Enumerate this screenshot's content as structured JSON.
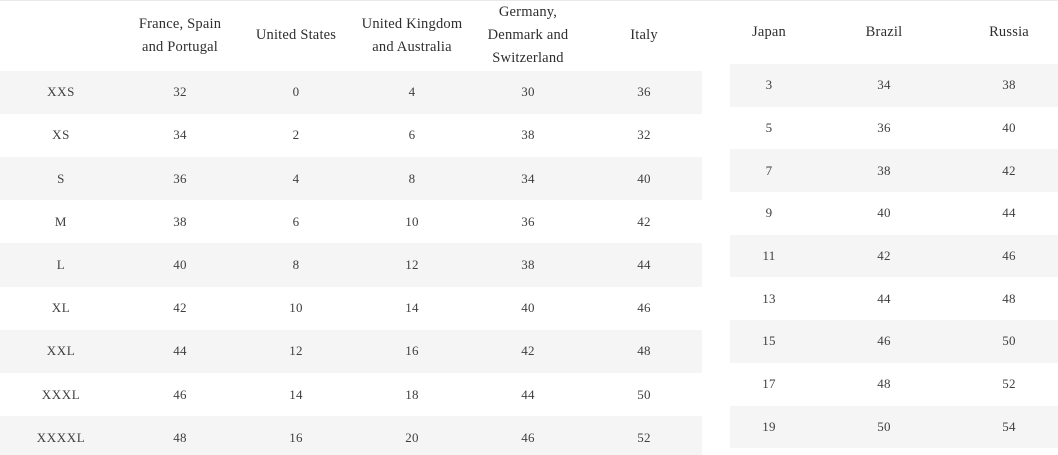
{
  "page": {
    "background": "#ffffff",
    "top_border_color": "#e9e9e9",
    "stripe_color": "#f5f5f5",
    "header_text_color": "#2e2e2e",
    "cell_text_color": "#3f3f3f"
  },
  "left_table": {
    "columns": [
      "",
      "France, Spain and Portugal",
      "United States",
      "United Kingdom and Australia",
      "Germany, Denmark and Switzerland",
      "Italy"
    ],
    "has_row_labels": true,
    "rows": [
      [
        "XXS",
        "32",
        "0",
        "4",
        "30",
        "36"
      ],
      [
        "XS",
        "34",
        "2",
        "6",
        "38",
        "32"
      ],
      [
        "S",
        "36",
        "4",
        "8",
        "34",
        "40"
      ],
      [
        "M",
        "38",
        "6",
        "10",
        "36",
        "42"
      ],
      [
        "L",
        "40",
        "8",
        "12",
        "38",
        "44"
      ],
      [
        "XL",
        "42",
        "10",
        "14",
        "40",
        "46"
      ],
      [
        "XXL",
        "44",
        "12",
        "16",
        "42",
        "48"
      ],
      [
        "XXXL",
        "46",
        "14",
        "18",
        "44",
        "50"
      ],
      [
        "XXXXL",
        "48",
        "16",
        "20",
        "46",
        "52"
      ]
    ]
  },
  "right_table": {
    "columns": [
      "Japan",
      "Brazil",
      "Russia"
    ],
    "has_row_labels": false,
    "rows": [
      [
        "3",
        "34",
        "38"
      ],
      [
        "5",
        "36",
        "40"
      ],
      [
        "7",
        "38",
        "42"
      ],
      [
        "9",
        "40",
        "44"
      ],
      [
        "11",
        "42",
        "46"
      ],
      [
        "13",
        "44",
        "48"
      ],
      [
        "15",
        "46",
        "50"
      ],
      [
        "17",
        "48",
        "52"
      ],
      [
        "19",
        "50",
        "54"
      ]
    ]
  }
}
